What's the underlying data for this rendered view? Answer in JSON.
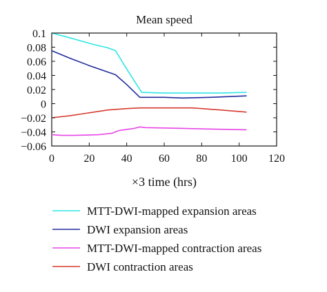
{
  "chart_data": {
    "type": "line",
    "title": "Mean speed",
    "xlabel": "×3 time (hrs)",
    "ylabel": "",
    "xlim": [
      0,
      120
    ],
    "ylim": [
      -0.06,
      0.1
    ],
    "xticks": [
      0,
      20,
      40,
      60,
      80,
      100,
      120
    ],
    "yticks": [
      0.1,
      0.08,
      0.06,
      0.04,
      0.02,
      0,
      -0.02,
      -0.04,
      -0.06
    ],
    "xtick_labels": [
      "0",
      "20",
      "40",
      "60",
      "80",
      "100",
      "120"
    ],
    "ytick_labels": [
      "0.1",
      "0.08",
      "0.06",
      "0.04",
      "0.02",
      "0",
      "−0.02",
      "−0.04",
      "−0.06"
    ],
    "grid": false,
    "legend_position": "bottom",
    "series": [
      {
        "name": "MTT-DWI-mapped expansion areas",
        "color": "#2ee6e6",
        "points": [
          [
            0,
            0.1
          ],
          [
            10,
            0.093
          ],
          [
            22,
            0.084
          ],
          [
            30,
            0.079
          ],
          [
            34,
            0.075
          ],
          [
            40,
            0.049
          ],
          [
            48,
            0.016
          ],
          [
            60,
            0.015
          ],
          [
            75,
            0.015
          ],
          [
            90,
            0.015
          ],
          [
            104,
            0.016
          ]
        ]
      },
      {
        "name": "DWI expansion areas",
        "color": "#1f2a9a",
        "points": [
          [
            0,
            0.075
          ],
          [
            10,
            0.064
          ],
          [
            20,
            0.054
          ],
          [
            34,
            0.041
          ],
          [
            40,
            0.027
          ],
          [
            47,
            0.009
          ],
          [
            60,
            0.009
          ],
          [
            70,
            0.008
          ],
          [
            85,
            0.009
          ],
          [
            104,
            0.011
          ]
        ]
      },
      {
        "name": "MTT-DWI-mapped contraction areas",
        "color": "#e645e6",
        "points": [
          [
            0,
            -0.044
          ],
          [
            5,
            -0.045
          ],
          [
            12,
            -0.045
          ],
          [
            25,
            -0.044
          ],
          [
            32,
            -0.042
          ],
          [
            36,
            -0.038
          ],
          [
            44,
            -0.035
          ],
          [
            47,
            -0.033
          ],
          [
            50,
            -0.034
          ],
          [
            70,
            -0.035
          ],
          [
            85,
            -0.036
          ],
          [
            104,
            -0.037
          ]
        ]
      },
      {
        "name": "DWI contraction areas",
        "color": "#d63a2e",
        "points": [
          [
            0,
            -0.02
          ],
          [
            10,
            -0.017
          ],
          [
            20,
            -0.013
          ],
          [
            30,
            -0.009
          ],
          [
            40,
            -0.007
          ],
          [
            47,
            -0.006
          ],
          [
            60,
            -0.006
          ],
          [
            75,
            -0.006
          ],
          [
            90,
            -0.009
          ],
          [
            104,
            -0.012
          ]
        ]
      }
    ]
  }
}
